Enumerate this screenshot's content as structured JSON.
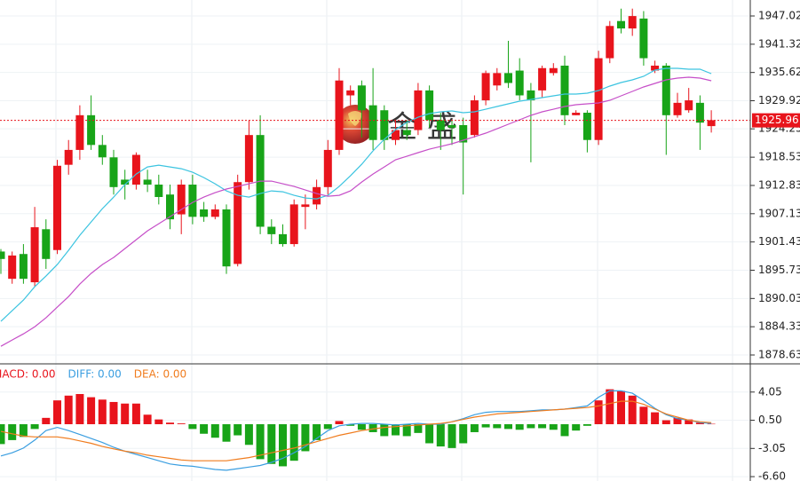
{
  "chart_data": [
    {
      "type": "candlestick",
      "watermark": "金 盛",
      "ylim": [
        1877.2,
        1950.24
      ],
      "yticks": [
        1947.02,
        1941.32,
        1935.62,
        1929.92,
        1924.25,
        1918.53,
        1912.83,
        1907.13,
        1901.43,
        1895.73,
        1890.03,
        1884.33,
        1878.63
      ],
      "grid": true,
      "up_color": "#e8141c",
      "down_color": "#18a418",
      "last_price": 1925.96,
      "last_price_color": "#e8141c",
      "open": [
        1899.5,
        1894,
        1899,
        1893.3,
        1904,
        1899.8,
        1917,
        1920,
        1927,
        1921,
        1918.5,
        1914,
        1913,
        1914,
        1913,
        1911,
        1907,
        1913,
        1908,
        1906.5,
        1908,
        1897,
        1913.5,
        1923,
        1904.5,
        1903,
        1901,
        1908.5,
        1909,
        1912.5,
        1920,
        1931,
        1933,
        1929,
        1928,
        1922,
        1924,
        1924,
        1932,
        1926,
        1925,
        1925,
        1923,
        1930,
        1933,
        1935.5,
        1936,
        1932,
        1932,
        1935.5,
        1937,
        1927,
        1927.5,
        1922,
        1938.5,
        1946,
        1944.5,
        1946.5,
        1936,
        1937,
        1927,
        1928,
        1929.5,
        1924.8
      ],
      "high": [
        1900,
        1899.5,
        1901,
        1908.5,
        1906,
        1918,
        1922,
        1929,
        1931,
        1923,
        1920,
        1916,
        1919.5,
        1916,
        1915,
        1913,
        1914,
        1915,
        1909.5,
        1909,
        1909,
        1915,
        1926,
        1927,
        1906,
        1905,
        1910,
        1911,
        1914,
        1922,
        1936.5,
        1933,
        1934,
        1936.5,
        1929,
        1926,
        1926,
        1933.5,
        1933,
        1927.5,
        1926,
        1926.5,
        1931,
        1936,
        1936.5,
        1942,
        1938.5,
        1933.5,
        1937,
        1937.5,
        1939,
        1928,
        1928,
        1940,
        1946,
        1948.5,
        1948.5,
        1948,
        1938,
        1937.5,
        1931.5,
        1932.5,
        1931,
        1928
      ],
      "low": [
        1895,
        1893,
        1893,
        1892.5,
        1896,
        1899,
        1915,
        1918,
        1920,
        1917,
        1911,
        1910,
        1912,
        1911.5,
        1909,
        1904,
        1903,
        1905,
        1905.5,
        1906,
        1895,
        1896.5,
        1912,
        1903,
        1901,
        1900.5,
        1900.5,
        1904,
        1908,
        1911,
        1919,
        1929,
        1922.5,
        1920,
        1920,
        1921,
        1922,
        1923,
        1924.5,
        1920,
        1921,
        1911,
        1922.5,
        1929,
        1932,
        1932.5,
        1930,
        1917.5,
        1930.5,
        1935,
        1925,
        1927,
        1919.5,
        1921,
        1937.5,
        1943.5,
        1943,
        1937,
        1935.5,
        1919,
        1926.5,
        1927.5,
        1920,
        1923.5
      ],
      "close": [
        1898,
        1898.7,
        1894,
        1904.4,
        1898,
        1916.8,
        1920,
        1927,
        1921,
        1918.5,
        1912.5,
        1913,
        1919,
        1913,
        1910.5,
        1906,
        1913,
        1906.5,
        1906.5,
        1908,
        1896.5,
        1913.5,
        1923,
        1904.5,
        1903,
        1901,
        1909,
        1909,
        1912.5,
        1920,
        1934,
        1932,
        1928,
        1922,
        1922,
        1924,
        1923,
        1932,
        1926,
        1924,
        1924.5,
        1921.5,
        1930,
        1935.5,
        1935.5,
        1933.5,
        1931,
        1930,
        1936.5,
        1936.5,
        1927,
        1927.5,
        1922,
        1938.5,
        1945,
        1944.5,
        1947,
        1938.5,
        1937,
        1927,
        1929.5,
        1930,
        1925.5,
        1926
      ],
      "series": [
        {
          "color": "#3cc4e0",
          "values": [
            1885.41,
            1887.56,
            1889.71,
            1892.39,
            1894.54,
            1896.87,
            1899.74,
            1902.78,
            1905.47,
            1908.16,
            1910.48,
            1912.99,
            1915.14,
            1916.57,
            1916.93,
            1916.57,
            1916.21,
            1915.5,
            1914.42,
            1913.17,
            1911.74,
            1910.84,
            1910.48,
            1911.2,
            1911.74,
            1911.56,
            1910.84,
            1910.3,
            1910.13,
            1910.84,
            1912.63,
            1914.78,
            1917.11,
            1919.8,
            1922.13,
            1924.1,
            1925.53,
            1926.6,
            1927.32,
            1927.68,
            1927.86,
            1927.5,
            1927.68,
            1928.21,
            1928.75,
            1929.29,
            1929.83,
            1930.18,
            1930.54,
            1930.9,
            1931.26,
            1931.26,
            1931.44,
            1931.98,
            1932.87,
            1933.59,
            1934.12,
            1934.84,
            1936.09,
            1936.45,
            1936.45,
            1936.27,
            1936.27,
            1935.38
          ]
        },
        {
          "color": "#c64fc8",
          "values": [
            1880.39,
            1881.65,
            1882.9,
            1884.33,
            1886.13,
            1888.28,
            1890.42,
            1892.93,
            1895.08,
            1896.87,
            1898.3,
            1900.1,
            1901.89,
            1903.68,
            1905.11,
            1906.54,
            1907.98,
            1909.41,
            1910.48,
            1911.38,
            1912.1,
            1912.63,
            1913.17,
            1913.71,
            1913.71,
            1913.17,
            1912.63,
            1911.92,
            1911.2,
            1910.66,
            1910.84,
            1911.74,
            1913.53,
            1915.14,
            1916.57,
            1918.01,
            1918.72,
            1919.44,
            1920.15,
            1920.69,
            1921.23,
            1921.95,
            1922.66,
            1923.38,
            1924.27,
            1925.17,
            1926.07,
            1926.96,
            1927.68,
            1928.21,
            1928.75,
            1929.11,
            1929.29,
            1929.47,
            1930.01,
            1930.9,
            1931.8,
            1932.69,
            1933.41,
            1934.12,
            1934.48,
            1934.66,
            1934.48,
            1933.95
          ]
        }
      ]
    },
    {
      "type": "macd",
      "ylim": [
        -7.15,
        7.6
      ],
      "yticks": [
        4.05,
        {
          "value": 0.5,
          "label": "0.50"
        },
        -3.05,
        {
          "value": -6.6,
          "label": "-6.60"
        }
      ],
      "grid": true,
      "up_color": "#e8141c",
      "down_color": "#18a418",
      "series": [
        {
          "name": "MACD: 0.00",
          "kind": "bar",
          "color": "#e8141c",
          "values": [
            -2.5,
            -2.0,
            -1.6,
            -0.6,
            0.8,
            3.0,
            3.6,
            3.8,
            3.4,
            3.1,
            2.8,
            2.6,
            2.6,
            1.2,
            0.6,
            0.2,
            0.1,
            -0.6,
            -1.2,
            -1.7,
            -2.2,
            -1.4,
            -2.6,
            -4.4,
            -5.0,
            -5.3,
            -4.6,
            -3.4,
            -2.0,
            -0.6,
            0.4,
            -0.2,
            -0.7,
            -1.0,
            -1.5,
            -1.4,
            -1.5,
            -1.1,
            -2.4,
            -2.8,
            -3.0,
            -2.4,
            -1.0,
            -0.4,
            -0.5,
            -0.6,
            -0.7,
            -0.5,
            -0.5,
            -0.7,
            -1.5,
            -0.8,
            -0.2,
            3.0,
            4.4,
            4.2,
            3.6,
            2.2,
            1.5,
            0.5,
            0.8,
            0.6,
            0.2,
            0.05
          ]
        },
        {
          "name": "DIFF: 0.00",
          "kind": "line",
          "color": "#3a9ee0",
          "values": [
            -4.0,
            -3.6,
            -3.0,
            -2.0,
            -0.8,
            -0.4,
            -0.8,
            -1.3,
            -1.8,
            -2.3,
            -2.9,
            -3.4,
            -3.8,
            -4.2,
            -4.6,
            -5.0,
            -5.2,
            -5.3,
            -5.5,
            -5.7,
            -5.8,
            -5.6,
            -5.4,
            -5.2,
            -4.8,
            -4.3,
            -3.6,
            -2.8,
            -1.8,
            -0.8,
            -0.2,
            0.0,
            0.1,
            0.1,
            0.0,
            -0.1,
            0.0,
            0.1,
            0.0,
            0.0,
            0.3,
            0.7,
            1.2,
            1.5,
            1.6,
            1.6,
            1.6,
            1.7,
            1.8,
            1.8,
            1.9,
            2.1,
            2.3,
            3.4,
            4.2,
            4.2,
            3.9,
            3.0,
            2.0,
            1.2,
            0.7,
            0.5,
            0.2,
            0.1
          ]
        },
        {
          "name": "DEA: 0.00",
          "kind": "line",
          "color": "#f07c1e",
          "values": [
            -0.9,
            -1.2,
            -1.5,
            -1.6,
            -1.6,
            -1.6,
            -1.8,
            -2.1,
            -2.4,
            -2.8,
            -3.1,
            -3.4,
            -3.6,
            -3.9,
            -4.1,
            -4.3,
            -4.5,
            -4.6,
            -4.6,
            -4.6,
            -4.6,
            -4.4,
            -4.2,
            -3.9,
            -3.6,
            -3.3,
            -3.0,
            -2.6,
            -2.2,
            -1.8,
            -1.4,
            -1.1,
            -0.8,
            -0.6,
            -0.4,
            -0.3,
            -0.2,
            -0.1,
            0.0,
            0.1,
            0.3,
            0.6,
            0.9,
            1.1,
            1.3,
            1.4,
            1.5,
            1.6,
            1.7,
            1.8,
            1.9,
            2.0,
            2.1,
            2.3,
            2.6,
            2.9,
            2.9,
            2.5,
            1.9,
            1.3,
            0.9,
            0.5,
            0.3,
            0.2
          ]
        }
      ]
    }
  ]
}
